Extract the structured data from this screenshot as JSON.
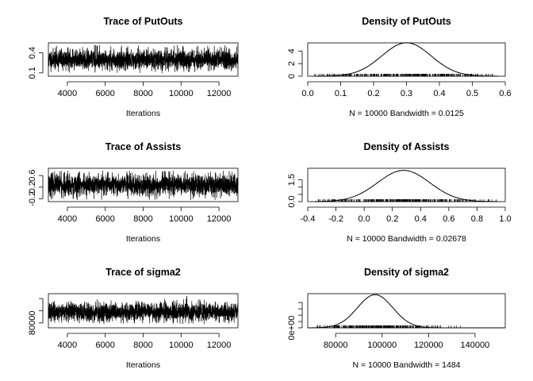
{
  "chart_data": [
    {
      "type": "line",
      "kind": "trace",
      "title": "Trace of PutOuts",
      "xlabel": "Iterations",
      "ylabel": "",
      "xlim": [
        3001,
        13000
      ],
      "ylim": [
        0.05,
        0.55
      ],
      "xticks": [
        4000,
        6000,
        8000,
        10000,
        12000
      ],
      "yticks": [
        0.1,
        0.4
      ],
      "ytick_labels": [
        "0.1",
        "0.4"
      ],
      "series": [
        {
          "mean": 0.3,
          "sd": 0.075,
          "lo": 0.09,
          "hi": 0.52,
          "seed": 11
        }
      ]
    },
    {
      "type": "area",
      "kind": "density",
      "title": "Density of PutOuts",
      "xlabel": "N = 10000   Bandwidth = 0.0125",
      "ylabel": "",
      "xlim": [
        0,
        0.6
      ],
      "ylim": [
        0,
        5.3
      ],
      "xticks": [
        0.0,
        0.1,
        0.2,
        0.3,
        0.4,
        0.5,
        0.6
      ],
      "xtick_labels": [
        "0.0",
        "0.1",
        "0.2",
        "0.3",
        "0.4",
        "0.5",
        "0.6"
      ],
      "yticks": [
        0,
        2,
        4
      ],
      "ytick_labels": [
        "0",
        "2",
        "4"
      ],
      "curve": {
        "mean": 0.3,
        "sd": 0.075,
        "from": 0.02,
        "to": 0.58
      },
      "rug": {
        "from": 0.02,
        "to": 0.57
      }
    },
    {
      "type": "line",
      "kind": "trace",
      "title": "Trace of Assists",
      "xlabel": "Iterations",
      "ylabel": "",
      "xlim": [
        3001,
        13000
      ],
      "ylim": [
        -0.3,
        0.85
      ],
      "xticks": [
        4000,
        6000,
        8000,
        10000,
        12000
      ],
      "yticks": [
        -0.2,
        0.2,
        0.6
      ],
      "ytick_labels": [
        "-0.2",
        "0.2",
        "0.6"
      ],
      "series": [
        {
          "mean": 0.28,
          "sd": 0.185,
          "lo": -0.25,
          "hi": 0.78,
          "seed": 23
        }
      ]
    },
    {
      "type": "area",
      "kind": "density",
      "title": "Density of Assists",
      "xlabel": "N = 10000   Bandwidth = 0.02678",
      "ylabel": "",
      "xlim": [
        -0.4,
        1.0
      ],
      "ylim": [
        0,
        2.3
      ],
      "xticks": [
        -0.4,
        -0.2,
        0.0,
        0.2,
        0.4,
        0.6,
        0.8,
        1.0
      ],
      "xtick_labels": [
        "-0.4",
        "-0.2",
        "0.0",
        "0.2",
        "0.4",
        "0.6",
        "0.8",
        "1.0"
      ],
      "yticks": [
        0,
        0.5,
        1.0,
        1.5
      ],
      "ytick_labels": [
        "0.0",
        "",
        "",
        "1.5"
      ],
      "curve": {
        "mean": 0.28,
        "sd": 0.185,
        "from": -0.35,
        "to": 0.95
      },
      "rug": {
        "from": -0.33,
        "to": 0.95
      }
    },
    {
      "type": "line",
      "kind": "trace",
      "title": "Trace of sigma2",
      "xlabel": "Iterations",
      "ylabel": "",
      "xlim": [
        3001,
        13000
      ],
      "ylim": [
        72000,
        128000
      ],
      "xticks": [
        4000,
        6000,
        8000,
        10000,
        12000
      ],
      "yticks": [
        80000,
        100000,
        120000
      ],
      "ytick_labels": [
        "80000",
        "",
        ""
      ],
      "series": [
        {
          "mean": 98000,
          "sd": 7500,
          "lo": 78000,
          "hi": 120000,
          "seed": 37,
          "spike_at": 10300,
          "spike_val": 124000
        }
      ]
    },
    {
      "type": "area",
      "kind": "density",
      "title": "Density of sigma2",
      "xlabel": "N = 10000   Bandwidth = 1484",
      "ylabel": "",
      "xlim": [
        68000,
        153000
      ],
      "ylim": [
        0,
        5.4e-05
      ],
      "xticks": [
        80000,
        100000,
        120000,
        140000
      ],
      "xtick_labels": [
        "80000",
        "100000",
        "120000",
        "140000"
      ],
      "yticks": [
        0,
        1e-05,
        2e-05,
        3e-05,
        4e-05
      ],
      "ytick_labels": [
        "0e+00",
        "",
        "",
        "",
        ""
      ],
      "curve": {
        "mean": 97000,
        "sd": 7600,
        "from": 68000,
        "to": 153000
      },
      "rug": {
        "from": 72000,
        "to": 135000
      }
    }
  ]
}
